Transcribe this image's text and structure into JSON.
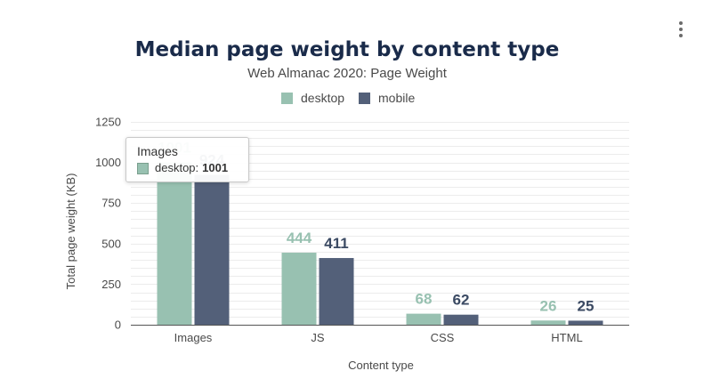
{
  "chart_data": {
    "type": "bar",
    "title": "Median page weight by content type",
    "subtitle": "Web Almanac 2020: Page Weight",
    "xlabel": "Content type",
    "ylabel": "Total page weight (KB)",
    "ylim": [
      0,
      1250
    ],
    "yticks": [
      "0",
      "250",
      "500",
      "750",
      "1000",
      "1250"
    ],
    "categories": [
      "Images",
      "JS",
      "CSS",
      "HTML"
    ],
    "series": [
      {
        "name": "desktop",
        "color": "#98c1b1",
        "values": [
          1001,
          444,
          68,
          26
        ]
      },
      {
        "name": "mobile",
        "color": "#536079",
        "values": [
          924,
          411,
          62,
          25
        ]
      }
    ],
    "legend_position": "top",
    "grid": true
  },
  "tooltip": {
    "title": "Images",
    "series_label": "desktop:",
    "value": "1001"
  },
  "menu": {
    "icon": "kebab-menu-icon"
  }
}
